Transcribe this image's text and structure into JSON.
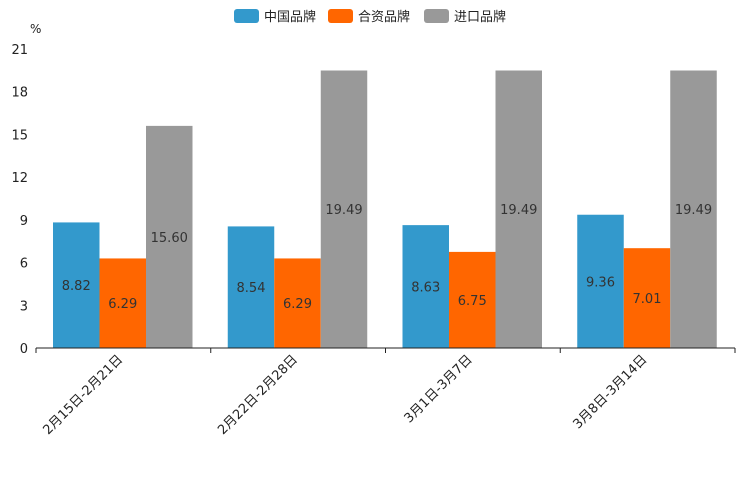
{
  "chart_data": {
    "type": "bar",
    "unit": "%",
    "categories": [
      "2月15日-2月21日",
      "2月22日-2月28日",
      "3月1日-3月7日",
      "3月8日-3月14日"
    ],
    "series": [
      {
        "name": "中国品牌",
        "color": "#3399cc",
        "values": [
          8.82,
          8.54,
          8.63,
          9.36
        ],
        "labels": [
          "8.82",
          "8.54",
          "8.63",
          "9.36"
        ]
      },
      {
        "name": "合资品牌",
        "color": "#ff6600",
        "values": [
          6.29,
          6.29,
          6.75,
          7.01
        ],
        "labels": [
          "6.29",
          "6.29",
          "6.75",
          "7.01"
        ]
      },
      {
        "name": "进口品牌",
        "color": "#999999",
        "values": [
          15.6,
          19.49,
          19.49,
          19.49
        ],
        "labels": [
          "15.60",
          "19.49",
          "19.49",
          "19.49"
        ]
      }
    ],
    "yticks": [
      0,
      3,
      6,
      9,
      12,
      15,
      18,
      21
    ],
    "ylim": [
      0,
      21
    ],
    "grid": false,
    "legend_position": "top-center"
  }
}
